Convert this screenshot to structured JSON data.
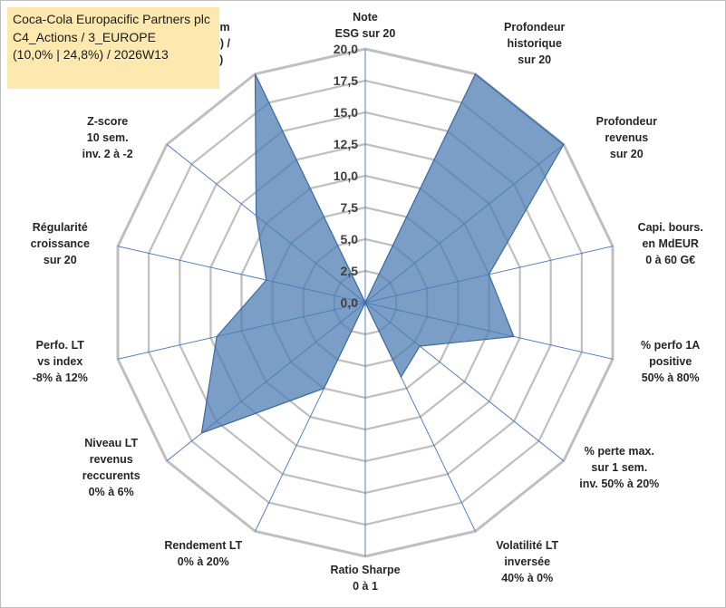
{
  "title": {
    "line1": "Coca-Cola Europacific Partners plc",
    "line2": "C4_Actions / 3_EUROPE",
    "line3": "(10,0% | 24,8%) / 2026W13"
  },
  "colors": {
    "fill": "#4f7db3",
    "fill_opacity": 0.75,
    "stroke": "#3d6aa1",
    "grid": "#bfbfbf",
    "spokes": "#4472c4",
    "title_bg": "#fde9b0"
  },
  "chart_data": {
    "type": "radar",
    "title": "",
    "rlim": [
      0,
      20
    ],
    "ticks": [
      "0,0",
      "2,5",
      "5,0",
      "7,5",
      "10,0",
      "12,5",
      "15,0",
      "17,5",
      "20,0"
    ],
    "grid": true,
    "categories": [
      [
        "Note",
        "ESG sur 20"
      ],
      [
        "Profondeur",
        "historique",
        "sur 20"
      ],
      [
        "Profondeur",
        "revenus",
        "sur 20"
      ],
      [
        "Capi. bours.",
        "en MdEUR",
        "0 à 60 G€"
      ],
      [
        "% perfo 1A",
        "positive",
        "50% à 80%"
      ],
      [
        "% perte max.",
        "sur 1 sem.",
        "inv. 50% à 20%"
      ],
      [
        "Volatilité LT",
        "inversée",
        "40% à 0%"
      ],
      [
        "Ratio Sharpe",
        "0 à 1"
      ],
      [
        "Rendement LT",
        "0% à 20%"
      ],
      [
        "Niveau LT",
        "revenus",
        "reccurents",
        "0% à 6%"
      ],
      [
        "Perfo. LT",
        "vs index",
        "-8% à 12%"
      ],
      [
        "Régularité",
        "croissance",
        "sur 20"
      ],
      [
        "Z-score",
        "10 sem.",
        "inv. 2 à -2"
      ],
      [
        "Momentum",
        "Achat (20) /",
        "Vente (0)"
      ]
    ],
    "series": [
      {
        "values": [
          0,
          20,
          20,
          10,
          12,
          5.5,
          6.5,
          0,
          7.5,
          16.5,
          12,
          8,
          11,
          20
        ]
      }
    ]
  }
}
